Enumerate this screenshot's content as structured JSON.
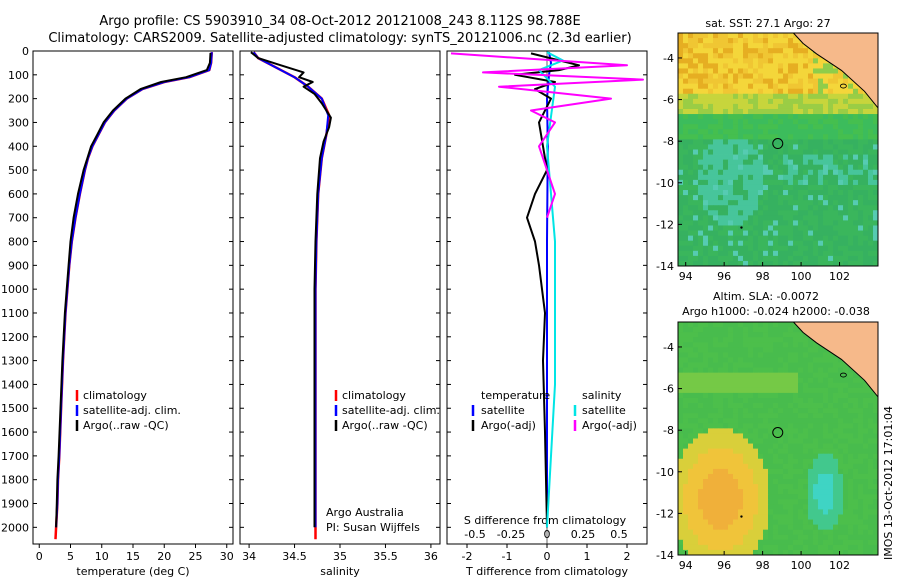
{
  "header": {
    "line1": "Argo profile: CS 5903910_34 08-Oct-2012 20121008_243 8.112S 98.788E",
    "line2": "Climatology: CARS2009. Satellite-adjusted climatology: synTS_20121006.nc (2.3d earlier)"
  },
  "colors": {
    "climatology": "#ff0000",
    "satellite": "#0000ff",
    "argo": "#000000",
    "sal_satellite": "#00e5e5",
    "sal_argo": "#ff00ff",
    "land": "#f6b98a"
  },
  "chart_data": [
    {
      "type": "line",
      "id": "temperature",
      "xlabel": "temperature (deg C)",
      "ylabel": "",
      "xlim": [
        -1,
        31
      ],
      "ylim": [
        2070,
        0
      ],
      "xticks": [
        "0",
        "5",
        "10",
        "15",
        "20",
        "25",
        "30"
      ],
      "yticks": [
        "0",
        "100",
        "200",
        "300",
        "400",
        "500",
        "600",
        "700",
        "800",
        "900",
        "1000",
        "1100",
        "1200",
        "1300",
        "1400",
        "1500",
        "1600",
        "1700",
        "1800",
        "1900",
        "2000"
      ],
      "legend": [
        "climatology",
        "satellite-adj. clim.",
        "Argo(..raw -QC)"
      ],
      "series": [
        {
          "name": "climatology",
          "color": "#ff0000",
          "x": [
            27.6,
            27.5,
            27.2,
            24,
            20,
            16.5,
            14,
            12,
            10.5,
            9.5,
            8.5,
            7.8,
            7.3,
            6.5,
            5.8,
            5.2,
            4.8,
            4.2,
            3.8,
            3.5,
            3.2,
            3.0,
            2.9,
            2.7,
            2.6
          ],
          "y": [
            5,
            50,
            80,
            110,
            130,
            160,
            200,
            250,
            300,
            350,
            400,
            450,
            500,
            600,
            700,
            800,
            900,
            1100,
            1300,
            1500,
            1700,
            1800,
            1900,
            2000,
            2050
          ]
        },
        {
          "name": "satellite-adj. clim.",
          "color": "#0000ff",
          "x": [
            27.6,
            27.5,
            27.2,
            24,
            20,
            16.5,
            14,
            12,
            10.5,
            9.5,
            8.5,
            7.8,
            7.3,
            6.5,
            5.8,
            5.2,
            4.8,
            4.2,
            3.8,
            3.5,
            3.2,
            3.0,
            2.9,
            2.7
          ],
          "y": [
            5,
            50,
            80,
            110,
            130,
            160,
            200,
            250,
            300,
            350,
            400,
            450,
            500,
            600,
            700,
            800,
            900,
            1100,
            1300,
            1500,
            1700,
            1800,
            1900,
            2000
          ]
        },
        {
          "name": "Argo(..raw -QC)",
          "color": "#000000",
          "x": [
            27.4,
            27.3,
            26.8,
            23.5,
            19.5,
            16.2,
            13.8,
            11.8,
            10.3,
            9.3,
            8.3,
            7.7,
            7.1,
            6.2,
            5.5,
            5.0,
            4.7,
            4.1,
            3.7,
            3.4,
            3.1,
            2.9,
            2.8,
            2.7
          ],
          "y": [
            8,
            50,
            80,
            110,
            130,
            160,
            200,
            250,
            300,
            350,
            400,
            450,
            500,
            600,
            700,
            800,
            900,
            1100,
            1300,
            1500,
            1700,
            1800,
            1900,
            2000
          ]
        }
      ]
    },
    {
      "type": "line",
      "id": "salinity",
      "xlabel": "salinity",
      "xlim": [
        33.9,
        36.1
      ],
      "ylim": [
        2070,
        0
      ],
      "xticks": [
        "34",
        "34.5",
        "35",
        "35.5",
        "36"
      ],
      "legend": [
        "climatology",
        "satellite-adj. clim.",
        "Argo(..raw -QC)"
      ],
      "annotation": [
        "Argo Australia",
        "PI: Susan Wijffels"
      ],
      "series": [
        {
          "name": "climatology",
          "color": "#ff0000",
          "x": [
            34.05,
            34.1,
            34.3,
            34.5,
            34.65,
            34.8,
            34.88,
            34.85,
            34.8,
            34.76,
            34.74,
            34.73,
            34.73,
            34.73,
            34.73,
            34.73
          ],
          "y": [
            5,
            30,
            70,
            110,
            150,
            200,
            270,
            350,
            450,
            600,
            800,
            1000,
            1300,
            1600,
            1900,
            2050
          ]
        },
        {
          "name": "satellite-adj. clim.",
          "color": "#0000ff",
          "x": [
            34.05,
            34.1,
            34.3,
            34.5,
            34.65,
            34.8,
            34.87,
            34.85,
            34.8,
            34.76,
            34.74,
            34.73,
            34.73,
            34.73,
            34.73,
            34.73
          ],
          "y": [
            5,
            30,
            70,
            110,
            150,
            200,
            270,
            350,
            450,
            600,
            800,
            1000,
            1300,
            1600,
            1900,
            2000
          ]
        },
        {
          "name": "Argo(..raw -QC)",
          "color": "#000000",
          "x": [
            34.02,
            34.1,
            34.35,
            34.6,
            34.55,
            34.7,
            34.6,
            34.72,
            34.8,
            34.9,
            34.88,
            34.82,
            34.78,
            34.75,
            34.73,
            34.72,
            34.72,
            34.72,
            34.72
          ],
          "y": [
            5,
            30,
            60,
            90,
            110,
            130,
            150,
            180,
            220,
            280,
            320,
            380,
            450,
            600,
            800,
            1000,
            1300,
            1600,
            2000
          ]
        }
      ]
    },
    {
      "type": "line",
      "id": "difference",
      "xlabel": "T difference from climatology",
      "top_axis_label": "S difference from climatology",
      "xlim": [
        -2.5,
        2.5
      ],
      "ylim": [
        2070,
        0
      ],
      "xticks": [
        "-2",
        "-1",
        "0",
        "1",
        "2"
      ],
      "top_ticks": [
        "-0.5",
        "-0.25",
        "0",
        "0.25",
        "0.5"
      ],
      "legend_temperature": [
        "temperature",
        "satellite",
        "Argo(-adj)"
      ],
      "legend_salinity": [
        "salinity",
        "satellite",
        "Argo(-adj)"
      ],
      "series": [
        {
          "name": "temperature satellite",
          "color": "#0000ff",
          "x": [
            0.05,
            0.1,
            0.05,
            0.0,
            0.02,
            0.0,
            0.0,
            0.0,
            0.0
          ],
          "y": [
            5,
            50,
            100,
            200,
            400,
            800,
            1200,
            1600,
            2000
          ]
        },
        {
          "name": "temperature Argo(-adj)",
          "color": "#000000",
          "x": [
            -0.4,
            0.8,
            0.3,
            -0.8,
            0.2,
            -0.3,
            0.1,
            -0.2,
            -0.1,
            0.0,
            -0.3,
            -0.5,
            -0.3,
            -0.2,
            -0.05,
            -0.1,
            -0.05,
            0.0
          ],
          "y": [
            10,
            60,
            80,
            100,
            130,
            160,
            200,
            300,
            400,
            500,
            600,
            700,
            800,
            900,
            1100,
            1300,
            1600,
            2000
          ]
        },
        {
          "name": "salinity satellite",
          "color": "#00e5e5",
          "x": [
            0.0,
            0.1,
            -0.05,
            0.05,
            0.0,
            0.05,
            0.05,
            0.0
          ],
          "y": [
            5,
            40,
            80,
            150,
            400,
            800,
            1400,
            2000
          ]
        },
        {
          "name": "salinity Argo(-adj)",
          "color": "#ff00ff",
          "x": [
            -0.6,
            0.5,
            -0.4,
            0.6,
            -0.3,
            0.4,
            -0.1,
            0.05,
            -0.05,
            0.0,
            0.05,
            0.0
          ],
          "y": [
            10,
            60,
            90,
            120,
            150,
            200,
            250,
            300,
            400,
            500,
            600,
            700
          ]
        }
      ]
    },
    {
      "type": "heatmap",
      "id": "sst-map",
      "title": "sat. SST: 27.1  Argo: 27",
      "xlim": [
        93.6,
        104
      ],
      "ylim": [
        -14,
        -2.8
      ],
      "xticks": [
        "94",
        "96",
        "98",
        "100",
        "102"
      ],
      "yticks": [
        "-4",
        "-6",
        "-8",
        "-10",
        "-12",
        "-14"
      ],
      "argo_position": [
        98.788,
        -8.112
      ]
    },
    {
      "type": "heatmap",
      "id": "sla-map",
      "title": "Altim. SLA: -0.0072",
      "subtitle": "Argo h1000: -0.024 h2000: -0.038",
      "xlim": [
        93.6,
        104
      ],
      "ylim": [
        -14,
        -2.8
      ],
      "xticks": [
        "94",
        "96",
        "98",
        "100",
        "102"
      ],
      "yticks": [
        "-4",
        "-6",
        "-8",
        "-10",
        "-12",
        "-14"
      ],
      "argo_position": [
        98.788,
        -8.112
      ]
    }
  ],
  "footer": {
    "watermark": "IMOS 13-Oct-2012 17:01:04"
  }
}
